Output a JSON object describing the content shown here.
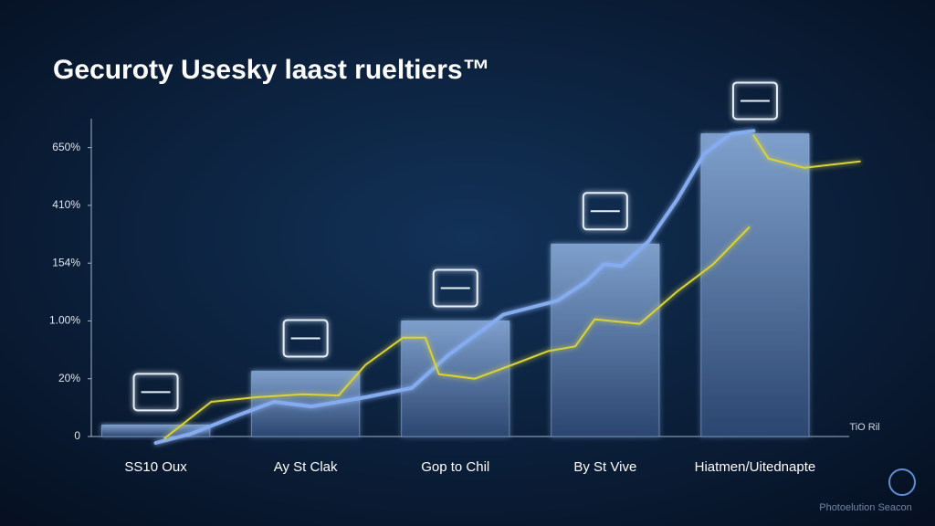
{
  "chart_data": {
    "type": "bar",
    "title": "Gecuroty Usesky laast rueltiers™",
    "categories": [
      "SS10 Oux",
      "Ay St Clak",
      "Gop to Chil",
      "By St Vive",
      "Hiatmen/Uitednapte"
    ],
    "values": [
      0.2,
      1.13,
      2.0,
      3.33,
      5.24
    ],
    "color": "#5b7daa",
    "xlim": [
      -0.43,
      4.75
    ],
    "ylim": [
      -0.2,
      5.5
    ],
    "yticks": [
      {
        "value": 0,
        "label": "0"
      },
      {
        "value": 1,
        "label": "20%"
      },
      {
        "value": 2,
        "label": "1.00%"
      },
      {
        "value": 3,
        "label": "154%"
      },
      {
        "value": 4,
        "label": "410%"
      },
      {
        "value": 5,
        "label": "650%"
      }
    ],
    "series": [
      {
        "color": "#86acf0",
        "x": [
          0,
          0.24,
          0.55,
          0.79,
          1.04,
          1.4,
          1.71,
          1.95,
          2.32,
          2.68,
          2.87,
          2.99,
          3.11,
          3.29,
          3.48,
          3.66,
          3.84,
          3.99
        ],
        "values": [
          -0.11,
          0.05,
          0.37,
          0.6,
          0.52,
          0.68,
          0.84,
          1.4,
          2.11,
          2.35,
          2.67,
          2.98,
          2.95,
          3.38,
          4.1,
          4.89,
          5.24,
          5.29
        ]
      },
      {
        "color": "#d8d23a",
        "x": [
          0.06,
          0.37,
          0.67,
          0.98,
          1.22,
          1.4,
          1.65,
          1.8,
          1.89,
          2.13,
          2.38,
          2.62,
          2.8,
          2.93,
          3.23,
          3.48,
          3.72,
          3.96
        ],
        "values": [
          -0.03,
          0.6,
          0.68,
          0.73,
          0.71,
          1.24,
          1.71,
          1.71,
          1.08,
          1.0,
          1.24,
          1.48,
          1.56,
          2.03,
          1.95,
          2.51,
          2.98,
          3.62
        ]
      },
      {
        "color": "#d8d23a",
        "x": [
          3.99,
          4.09,
          4.33,
          4.7
        ],
        "values": [
          5.21,
          4.81,
          4.65,
          4.76
        ]
      }
    ],
    "annotations": [
      "TiO Ril",
      "Photoelution Seacon"
    ]
  }
}
